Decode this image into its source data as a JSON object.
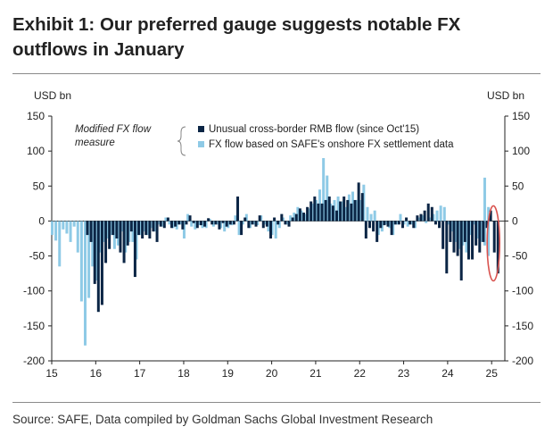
{
  "title": "Exhibit 1: Our preferred gauge suggests notable FX outflows in January",
  "source": "Source: SAFE, Data compiled by Goldman Sachs Global Investment Research",
  "colors": {
    "dark": "#0b2545",
    "light": "#8ecae6",
    "highlight": "#d9534f"
  },
  "chart_data": {
    "type": "bar",
    "stacked": false,
    "y_unit_left": "USD bn",
    "y_unit_right": "USD bn",
    "ylim": [
      -200,
      150
    ],
    "yticks": [
      150,
      100,
      50,
      0,
      -50,
      -100,
      -150,
      -200
    ],
    "xlim": [
      2015,
      2025.3
    ],
    "xticks": [
      "15",
      "16",
      "17",
      "18",
      "19",
      "20",
      "21",
      "22",
      "23",
      "24",
      "25"
    ],
    "legend_title": "Modified FX flow measure",
    "legend_position": "top-left",
    "grid": false,
    "annotation": "red ellipse around January 2025 outflow",
    "series": [
      {
        "name": "FX flow based on SAFE's onshore FX settlement data",
        "color": "#8ecae6",
        "x": [
          2015.0,
          2015.083,
          2015.167,
          2015.25,
          2015.333,
          2015.417,
          2015.5,
          2015.583,
          2015.667,
          2015.75,
          2015.833,
          2015.917,
          2016.0,
          2016.083,
          2016.167,
          2016.25,
          2016.333,
          2016.417,
          2016.5,
          2016.583,
          2016.667,
          2016.75,
          2016.833,
          2016.917,
          2017.0,
          2017.083,
          2017.167,
          2017.25,
          2017.333,
          2017.417,
          2017.5,
          2017.583,
          2017.667,
          2017.75,
          2017.833,
          2017.917,
          2018.0,
          2018.083,
          2018.167,
          2018.25,
          2018.333,
          2018.417,
          2018.5,
          2018.583,
          2018.667,
          2018.75,
          2018.833,
          2018.917,
          2019.0,
          2019.083,
          2019.167,
          2019.25,
          2019.333,
          2019.417,
          2019.5,
          2019.583,
          2019.667,
          2019.75,
          2019.833,
          2019.917,
          2020.0,
          2020.083,
          2020.167,
          2020.25,
          2020.333,
          2020.417,
          2020.5,
          2020.583,
          2020.667,
          2020.75,
          2020.833,
          2020.917,
          2021.0,
          2021.083,
          2021.167,
          2021.25,
          2021.333,
          2021.417,
          2021.5,
          2021.583,
          2021.667,
          2021.75,
          2021.833,
          2021.917,
          2022.0,
          2022.083,
          2022.167,
          2022.25,
          2022.333,
          2022.417,
          2022.5,
          2022.583,
          2022.667,
          2022.75,
          2022.833,
          2022.917,
          2023.0,
          2023.083,
          2023.167,
          2023.25,
          2023.333,
          2023.417,
          2023.5,
          2023.583,
          2023.667,
          2023.75,
          2023.833,
          2023.917,
          2024.0,
          2024.083,
          2024.167,
          2024.25,
          2024.333,
          2024.417,
          2024.5,
          2024.583,
          2024.667,
          2024.75,
          2024.833,
          2024.917
        ],
        "values": [
          -20,
          -28,
          -65,
          -12,
          -18,
          -30,
          -8,
          -45,
          -115,
          -178,
          -110,
          -65,
          -85,
          -45,
          -30,
          -25,
          -20,
          -40,
          -35,
          -15,
          -45,
          -30,
          -30,
          -55,
          -20,
          -15,
          -20,
          -10,
          -15,
          -5,
          -8,
          5,
          -5,
          -10,
          -12,
          -5,
          -25,
          10,
          -8,
          -12,
          -6,
          -10,
          -10,
          3,
          -8,
          -5,
          -10,
          -15,
          -10,
          -6,
          8,
          -20,
          -5,
          10,
          -10,
          -5,
          -6,
          8,
          -5,
          -15,
          -20,
          -25,
          -10,
          5,
          -5,
          8,
          12,
          20,
          15,
          10,
          18,
          25,
          30,
          45,
          90,
          65,
          25,
          30,
          35,
          28,
          20,
          38,
          42,
          30,
          30,
          52,
          20,
          10,
          15,
          -20,
          -15,
          -5,
          -10,
          -20,
          -5,
          10,
          -5,
          -8,
          -5,
          -10,
          5,
          8,
          -3,
          5,
          10,
          15,
          22,
          20,
          -5,
          -15,
          -30,
          -40,
          -35,
          -45,
          -20,
          -5,
          -25,
          -30,
          -35,
          -50
        ],
        "x_extra": [
          2024.833,
          2024.917
        ],
        "values_extra": [
          62,
          20
        ]
      },
      {
        "name": "Unusual cross-border RMB flow (since Oct'15)",
        "color": "#0b2545",
        "x": [
          2015.75,
          2015.833,
          2015.917,
          2016.0,
          2016.083,
          2016.167,
          2016.25,
          2016.333,
          2016.417,
          2016.5,
          2016.583,
          2016.667,
          2016.75,
          2016.833,
          2016.917,
          2017.0,
          2017.083,
          2017.167,
          2017.25,
          2017.333,
          2017.417,
          2017.5,
          2017.583,
          2017.667,
          2017.75,
          2017.833,
          2017.917,
          2018.0,
          2018.083,
          2018.167,
          2018.25,
          2018.333,
          2018.417,
          2018.5,
          2018.583,
          2018.667,
          2018.75,
          2018.833,
          2018.917,
          2019.0,
          2019.083,
          2019.167,
          2019.25,
          2019.333,
          2019.417,
          2019.5,
          2019.583,
          2019.667,
          2019.75,
          2019.833,
          2019.917,
          2020.0,
          2020.083,
          2020.167,
          2020.25,
          2020.333,
          2020.417,
          2020.5,
          2020.583,
          2020.667,
          2020.75,
          2020.833,
          2020.917,
          2021.0,
          2021.083,
          2021.167,
          2021.25,
          2021.333,
          2021.417,
          2021.5,
          2021.583,
          2021.667,
          2021.75,
          2021.833,
          2021.917,
          2022.0,
          2022.083,
          2022.167,
          2022.25,
          2022.333,
          2022.417,
          2022.5,
          2022.583,
          2022.667,
          2022.75,
          2022.833,
          2022.917,
          2023.0,
          2023.083,
          2023.167,
          2023.25,
          2023.333,
          2023.417,
          2023.5,
          2023.583,
          2023.667,
          2023.75,
          2023.833,
          2023.917,
          2024.0,
          2024.083,
          2024.167,
          2024.25,
          2024.333,
          2024.417,
          2024.5,
          2024.583,
          2024.667,
          2024.75,
          2024.833,
          2024.917,
          2025.0,
          2025.083
        ],
        "values": [
          -20,
          -30,
          -90,
          -130,
          -120,
          -60,
          -40,
          -20,
          -25,
          -45,
          -60,
          -35,
          -15,
          -80,
          -20,
          -25,
          -20,
          -25,
          -15,
          -30,
          -8,
          -10,
          5,
          -10,
          -8,
          -5,
          -12,
          -5,
          8,
          -3,
          -10,
          -6,
          -8,
          4,
          -5,
          -5,
          -12,
          -3,
          -8,
          -5,
          -5,
          35,
          -20,
          5,
          -10,
          -5,
          -8,
          8,
          -10,
          -8,
          -25,
          5,
          -5,
          10,
          -5,
          -8,
          5,
          10,
          18,
          12,
          20,
          28,
          35,
          25,
          25,
          30,
          35,
          22,
          15,
          28,
          35,
          30,
          25,
          30,
          55,
          40,
          -25,
          -10,
          -15,
          -30,
          -10,
          -6,
          -8,
          -20,
          -5,
          -5,
          -10,
          5,
          -5,
          -10,
          8,
          10,
          15,
          25,
          20,
          -5,
          -10,
          -40,
          -75,
          -30,
          -45,
          -50,
          -85,
          -30,
          -55,
          -55,
          -35,
          -45,
          -30,
          -10,
          15,
          -45,
          -75
        ]
      }
    ]
  }
}
